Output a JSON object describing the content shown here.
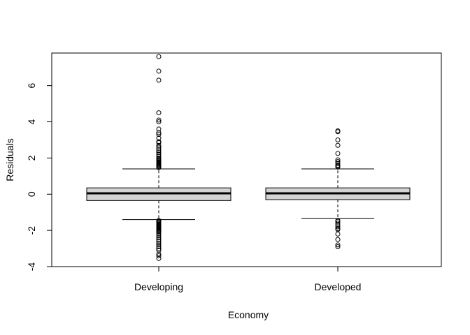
{
  "chart_data": {
    "type": "boxplot",
    "title": "",
    "xlabel": "Economy",
    "ylabel": "Residuals",
    "ylim": [
      -4,
      7.8
    ],
    "yticks": [
      -4,
      -2,
      0,
      2,
      4,
      6
    ],
    "grid": false,
    "legend": "none",
    "box_fill": "#d3d3d3",
    "categories": [
      "Developing",
      "Developed"
    ],
    "boxes": [
      {
        "name": "Developing",
        "whisker_low": -1.4,
        "q1": -0.35,
        "median": 0.05,
        "q3": 0.35,
        "whisker_high": 1.4,
        "outliers": [
          7.6,
          6.8,
          6.3,
          4.5,
          4.1,
          4.0,
          3.6,
          3.4,
          3.3,
          3.1,
          2.9,
          2.85,
          2.7,
          2.6,
          2.5,
          2.4,
          2.3,
          2.2,
          2.1,
          2.0,
          1.95,
          1.9,
          1.85,
          1.8,
          1.75,
          1.7,
          1.65,
          1.6,
          1.55,
          1.5,
          1.47,
          -1.45,
          -1.5,
          -1.55,
          -1.6,
          -1.65,
          -1.7,
          -1.75,
          -1.8,
          -1.85,
          -1.9,
          -1.95,
          -2.0,
          -2.05,
          -2.1,
          -2.2,
          -2.3,
          -2.4,
          -2.5,
          -2.6,
          -2.7,
          -2.8,
          -2.9,
          -3.0,
          -3.1,
          -3.3,
          -3.4,
          -3.55
        ]
      },
      {
        "name": "Developed",
        "whisker_low": -1.35,
        "q1": -0.3,
        "median": 0.05,
        "q3": 0.35,
        "whisker_high": 1.4,
        "outliers": [
          3.5,
          3.45,
          3.0,
          2.7,
          2.25,
          1.9,
          1.8,
          1.7,
          1.6,
          1.55,
          1.5,
          -1.45,
          -1.5,
          -1.6,
          -1.7,
          -1.8,
          -1.9,
          -1.95,
          -2.2,
          -2.5,
          -2.8,
          -2.9
        ]
      }
    ]
  }
}
